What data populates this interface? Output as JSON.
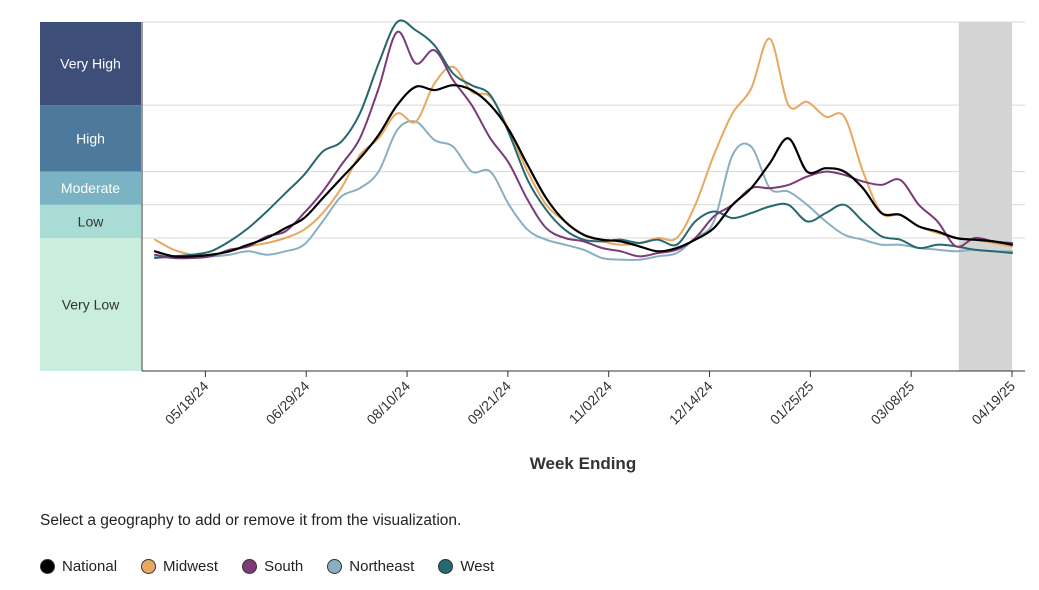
{
  "chart_data": {
    "type": "line",
    "title": "",
    "xlabel": "Week Ending",
    "ylabel": "",
    "x_ticks": [
      "05/18/24",
      "06/29/24",
      "08/10/24",
      "09/21/24",
      "11/02/24",
      "12/14/24",
      "01/25/25",
      "03/08/25",
      "04/19/25"
    ],
    "levels": [
      {
        "name": "Very High",
        "color": "#3d4e78",
        "text_color": "#ffffff"
      },
      {
        "name": "High",
        "color": "#4d7a9c",
        "text_color": "#ffffff"
      },
      {
        "name": "Moderate",
        "color": "#79b3c4",
        "text_color": "#ffffff"
      },
      {
        "name": "Low",
        "color": "#a8dcd4",
        "text_color": "#333333"
      },
      {
        "name": "Very Low",
        "color": "#c9eedd",
        "text_color": "#333333"
      }
    ],
    "level_thresholds": [
      8,
      10,
      12,
      16
    ],
    "ylim": [
      0,
      21
    ],
    "x_start": "04/27/24",
    "x_end": "04/19/25",
    "provisional_period": [
      "04/01/25",
      "04/19/25"
    ],
    "grid": true,
    "legend_position": "bottom-left",
    "series": [
      {
        "name": "National",
        "color": "#000000",
        "values": [
          7.2,
          6.9,
          6.9,
          7.0,
          7.2,
          7.6,
          8.0,
          8.6,
          9.2,
          10.4,
          11.6,
          12.8,
          14.2,
          16.0,
          17.1,
          16.9,
          17.2,
          16.9,
          16.0,
          14.5,
          12.4,
          10.4,
          9.0,
          8.2,
          7.9,
          7.8,
          7.5,
          7.2,
          7.4,
          7.9,
          8.6,
          10.0,
          11.0,
          12.5,
          14.0,
          12.0,
          12.2,
          12.0,
          11.0,
          9.5,
          9.4,
          8.7,
          8.4,
          8.0,
          7.9,
          7.8,
          7.6
        ]
      },
      {
        "name": "Midwest",
        "color": "#e8a85f",
        "values": [
          7.9,
          7.3,
          7.0,
          7.0,
          7.2,
          7.5,
          7.7,
          8.0,
          8.5,
          9.5,
          11.0,
          13.0,
          14.0,
          15.5,
          15.0,
          17.3,
          18.3,
          16.8,
          16.5,
          14.5,
          12.0,
          10.0,
          9.0,
          8.2,
          7.8,
          7.6,
          7.7,
          8.0,
          8.0,
          10.0,
          13.0,
          15.5,
          17.0,
          20.0,
          16.0,
          16.2,
          15.3,
          15.3,
          12.0,
          9.5,
          9.4,
          8.7,
          8.3,
          8.0,
          7.9,
          7.7,
          7.5
        ]
      },
      {
        "name": "South",
        "color": "#7a3b77",
        "values": [
          7.0,
          6.8,
          6.8,
          6.9,
          7.3,
          7.5,
          8.1,
          8.4,
          9.5,
          10.8,
          12.4,
          14.0,
          17.0,
          20.4,
          18.5,
          19.3,
          17.5,
          16.0,
          14.0,
          12.5,
          10.3,
          8.6,
          8.0,
          7.8,
          7.4,
          7.2,
          6.9,
          7.1,
          7.3,
          8.0,
          9.3,
          10.0,
          11.0,
          11.0,
          11.2,
          11.7,
          12.0,
          11.8,
          11.4,
          11.2,
          11.5,
          10.0,
          9.0,
          7.5,
          8.0,
          7.8,
          7.7
        ]
      },
      {
        "name": "Northeast",
        "color": "#8aafc4",
        "values": [
          6.9,
          6.8,
          6.9,
          6.9,
          7.0,
          7.2,
          7.0,
          7.2,
          7.6,
          9.0,
          10.5,
          11.0,
          12.0,
          14.5,
          15.0,
          13.9,
          13.5,
          12.0,
          12.0,
          10.0,
          8.5,
          7.9,
          7.6,
          7.3,
          6.8,
          6.7,
          6.7,
          6.9,
          7.1,
          8.0,
          9.0,
          13.0,
          13.5,
          11.0,
          10.8,
          10.0,
          9.0,
          8.2,
          7.9,
          7.6,
          7.6,
          7.4,
          7.3,
          7.2,
          7.3,
          7.2,
          7.2
        ]
      },
      {
        "name": "West",
        "color": "#256870",
        "values": [
          6.8,
          6.9,
          7.0,
          7.2,
          7.8,
          8.6,
          9.6,
          10.7,
          11.8,
          13.2,
          13.8,
          15.5,
          18.5,
          21.0,
          20.5,
          19.6,
          17.9,
          17.2,
          16.6,
          14.3,
          11.5,
          9.7,
          8.5,
          7.9,
          7.8,
          7.9,
          7.7,
          7.9,
          7.6,
          9.0,
          9.6,
          9.2,
          9.5,
          9.9,
          10.0,
          9.0,
          9.5,
          10.0,
          9.0,
          8.1,
          7.9,
          7.4,
          7.6,
          7.5,
          7.3,
          7.2,
          7.1
        ]
      }
    ]
  },
  "instruction_text": "Select a geography to add or remove it from the visualization.",
  "legend": [
    {
      "label": "National",
      "color": "#000000"
    },
    {
      "label": "Midwest",
      "color": "#e8a85f"
    },
    {
      "label": "South",
      "color": "#7a3b77"
    },
    {
      "label": "Northeast",
      "color": "#8aafc4"
    },
    {
      "label": "West",
      "color": "#256870"
    }
  ]
}
